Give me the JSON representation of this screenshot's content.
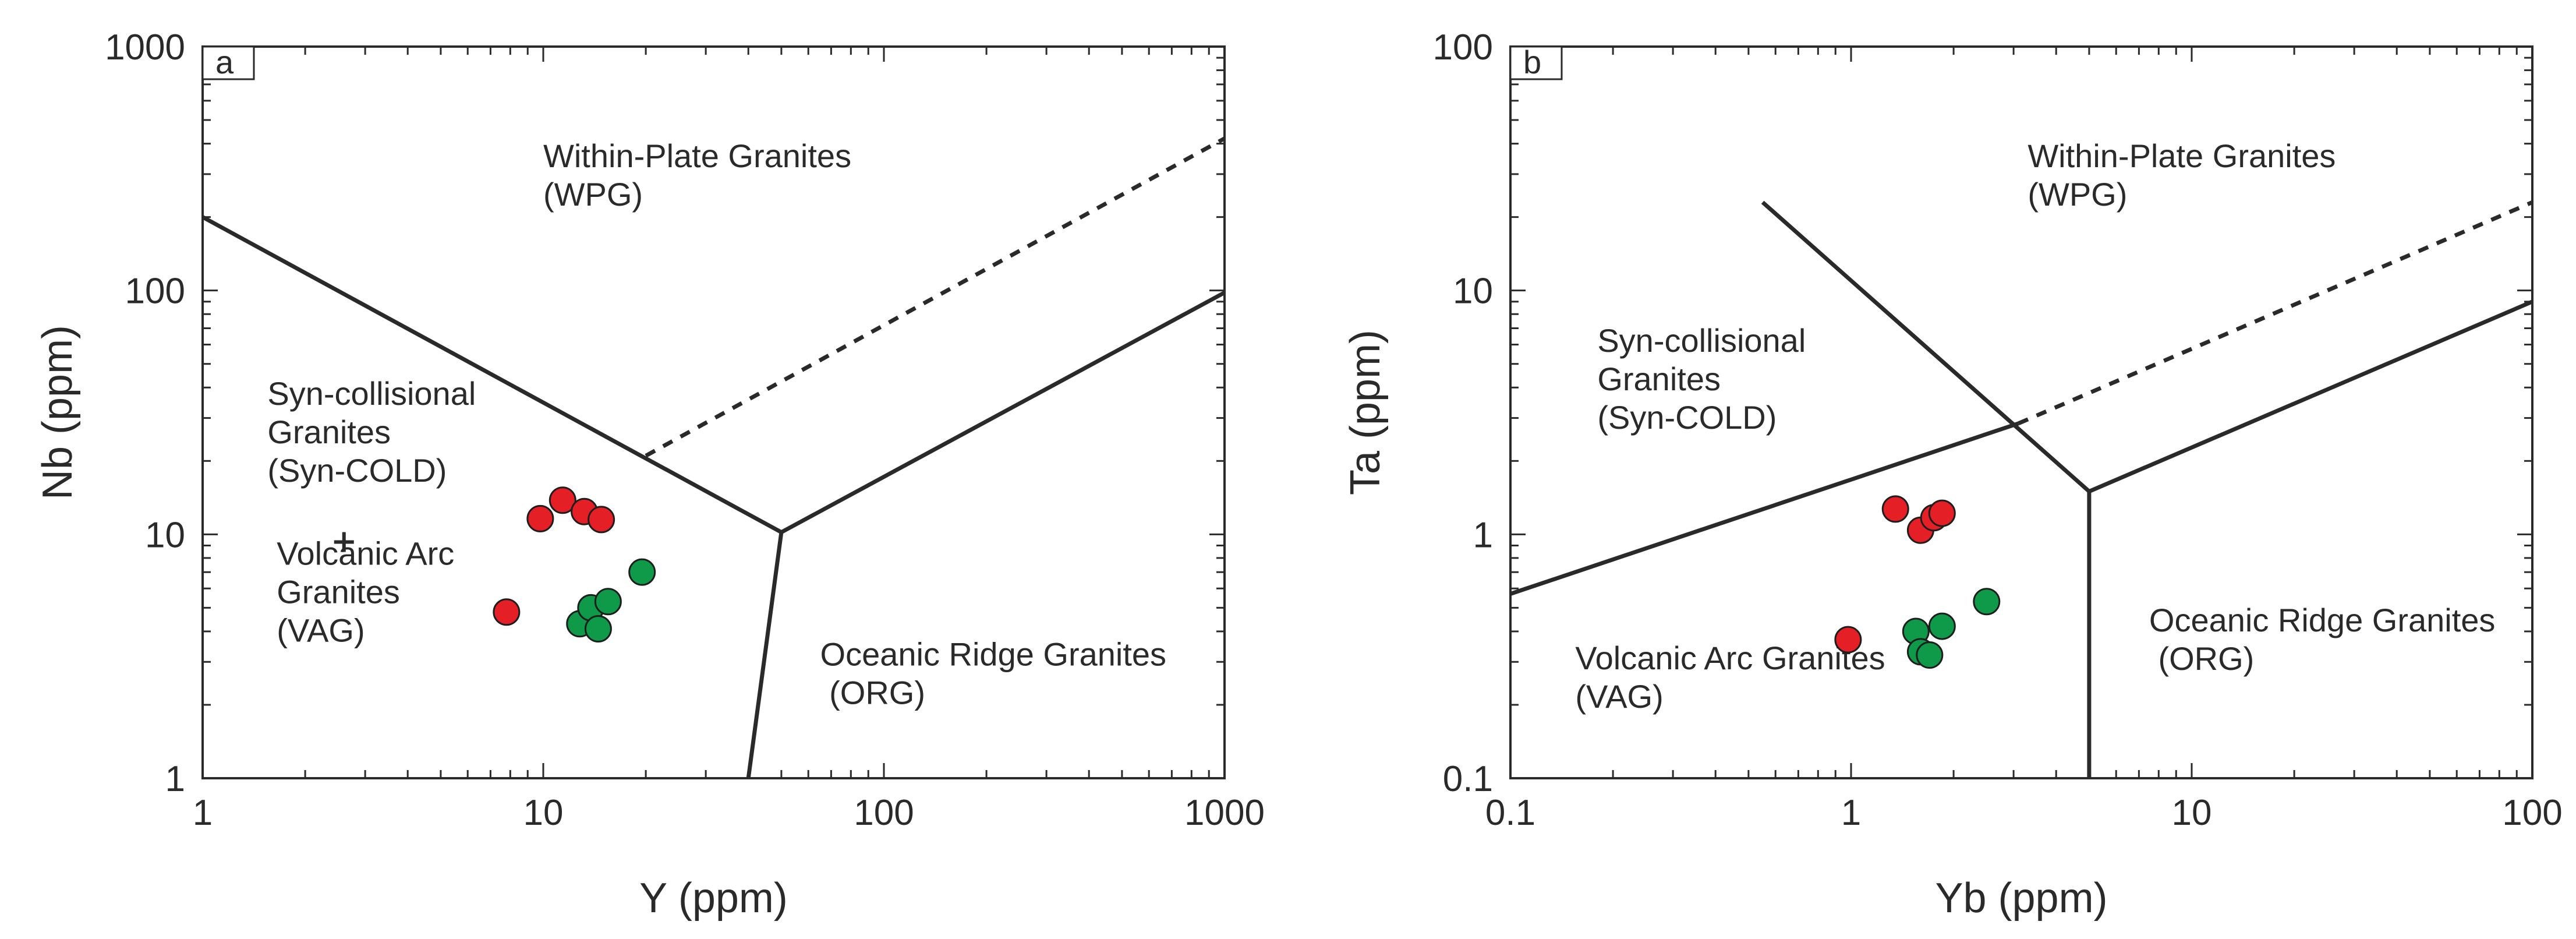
{
  "chart_data": [
    {
      "type": "scatter",
      "panel_label": "a",
      "xlabel": "Y (ppm)",
      "ylabel": "Nb (ppm)",
      "xscale": "log",
      "yscale": "log",
      "xlim": [
        1,
        1000
      ],
      "ylim": [
        1,
        1000
      ],
      "x_ticks": [
        "1",
        "10",
        "100",
        "1000"
      ],
      "y_ticks": [
        "1",
        "10",
        "100",
        "1000"
      ],
      "grid": false,
      "colors": {
        "red": "#e41f26",
        "green": "#0e9a48"
      },
      "series": [
        {
          "color": "red",
          "points": [
            [
              7.8,
              4.8
            ],
            [
              9.8,
              11.6
            ],
            [
              11.4,
              13.8
            ],
            [
              13.2,
              12.4
            ],
            [
              14.8,
              11.5
            ]
          ]
        },
        {
          "color": "green",
          "points": [
            [
              12.8,
              4.3
            ],
            [
              13.8,
              5.0
            ],
            [
              14.5,
              4.1
            ],
            [
              15.5,
              5.3
            ],
            [
              19.5,
              7.0
            ]
          ]
        }
      ],
      "boundaries": [
        {
          "style": "solid",
          "points": [
            [
              1,
              200
            ],
            [
              50,
              10.2
            ]
          ]
        },
        {
          "style": "solid",
          "points": [
            [
              50,
              10.2
            ],
            [
              1000,
              98
            ]
          ]
        },
        {
          "style": "solid",
          "points": [
            [
              50,
              10.2
            ],
            [
              40,
              1
            ]
          ]
        },
        {
          "style": "dashed",
          "points": [
            [
              20,
              21
            ],
            [
              1000,
              420
            ]
          ]
        }
      ],
      "regions": [
        {
          "lines": [
            "Within-Plate Granites",
            "(WPG)"
          ],
          "at": [
            10,
            320
          ]
        },
        {
          "lines": [
            "Syn-collisional",
            "Granites",
            "(Syn-COLD)"
          ],
          "at": [
            1.55,
            34
          ]
        },
        {
          "lines": [
            "Volcanic Arc",
            "Granites",
            "(VAG)"
          ],
          "at": [
            1.65,
            7.5
          ]
        },
        {
          "lines": [
            "Oceanic Ridge Granites",
            " (ORG)"
          ],
          "at": [
            65,
            2.9
          ]
        }
      ],
      "plus_marker": [
        2.6,
        9.3
      ]
    },
    {
      "type": "scatter",
      "panel_label": "b",
      "xlabel": "Yb (ppm)",
      "ylabel": "Ta (ppm)",
      "xscale": "log",
      "yscale": "log",
      "xlim": [
        0.1,
        100
      ],
      "ylim": [
        0.1,
        100
      ],
      "x_ticks": [
        "0.1",
        "1",
        "10",
        "100"
      ],
      "y_ticks": [
        "0.1",
        "1",
        "10",
        "100"
      ],
      "grid": false,
      "colors": {
        "red": "#e41f26",
        "green": "#0e9a48"
      },
      "series": [
        {
          "color": "red",
          "points": [
            [
              0.98,
              0.37
            ],
            [
              1.35,
              1.27
            ],
            [
              1.6,
              1.04
            ],
            [
              1.75,
              1.17
            ],
            [
              1.85,
              1.22
            ]
          ]
        },
        {
          "color": "green",
          "points": [
            [
              1.55,
              0.4
            ],
            [
              1.6,
              0.33
            ],
            [
              1.7,
              0.32
            ],
            [
              1.85,
              0.42
            ],
            [
              2.5,
              0.53
            ]
          ]
        }
      ],
      "boundaries": [
        {
          "style": "solid",
          "points": [
            [
              0.1,
              0.57
            ],
            [
              3.1,
              2.85
            ]
          ]
        },
        {
          "style": "solid",
          "points": [
            [
              0.55,
              23
            ],
            [
              5,
              1.5
            ]
          ]
        },
        {
          "style": "solid",
          "points": [
            [
              5,
              1.5
            ],
            [
              100,
              9.0
            ]
          ]
        },
        {
          "style": "solid",
          "points": [
            [
              5,
              1.5
            ],
            [
              5,
              0.1
            ]
          ]
        },
        {
          "style": "dashed",
          "points": [
            [
              3.1,
              2.85
            ],
            [
              100,
              23
            ]
          ]
        }
      ],
      "regions": [
        {
          "lines": [
            "Within-Plate Granites",
            "(WPG)"
          ],
          "at": [
            3.3,
            32
          ]
        },
        {
          "lines": [
            "Syn-collisional",
            "Granites",
            "(Syn-COLD)"
          ],
          "at": [
            0.18,
            5.6
          ]
        },
        {
          "lines": [
            "Volcanic Arc Granites",
            "(VAG)"
          ],
          "at": [
            0.155,
            0.28
          ]
        },
        {
          "lines": [
            "Oceanic Ridge Granites",
            " (ORG)"
          ],
          "at": [
            7.5,
            0.4
          ]
        }
      ]
    }
  ]
}
